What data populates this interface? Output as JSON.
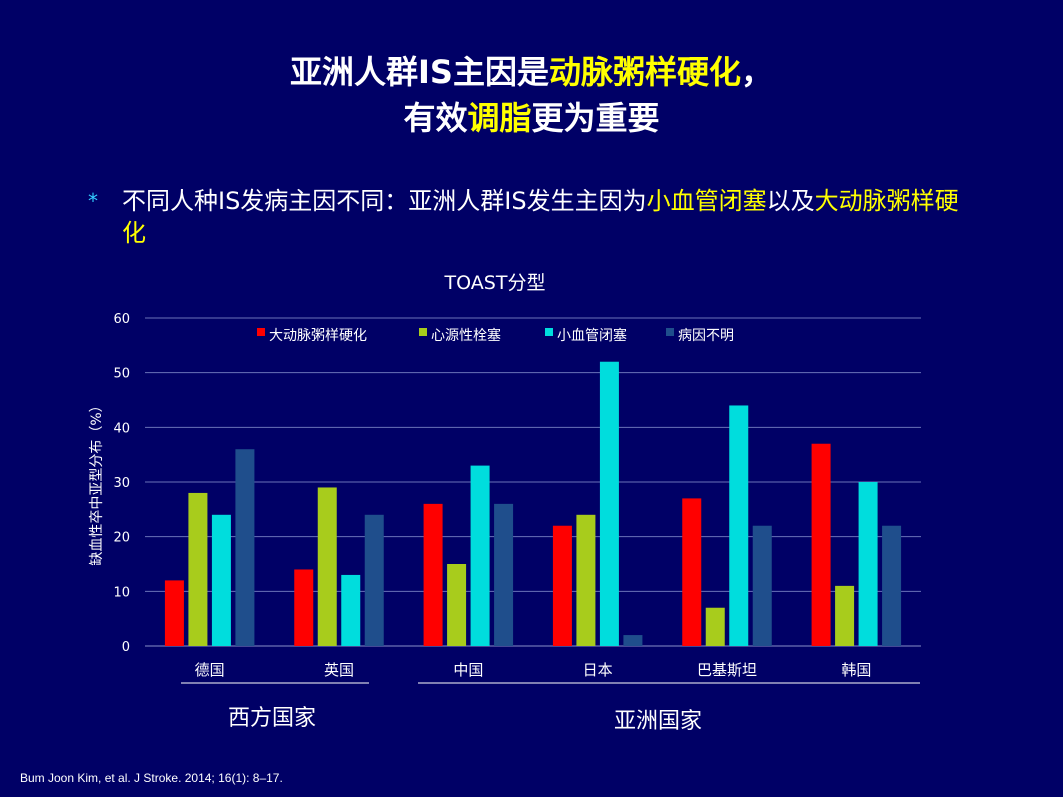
{
  "title": {
    "line1_pre": "亚洲人群IS主因是",
    "line1_hl": "动脉粥样硬化",
    "line1_post": "，",
    "line2_pre": "有效",
    "line2_hl": "调脂",
    "line2_post": "更为重要"
  },
  "bullet": {
    "marker": "*",
    "pre": "不同人种IS发病主因不同：亚洲人群IS发生主因为",
    "hl1": "小血管闭塞",
    "mid": "以及",
    "hl2": "大动脉粥样硬化"
  },
  "groups": {
    "western": "西方国家",
    "asian": "亚洲国家"
  },
  "citation": "Bum Joon Kim, et al. J Stroke.  2014; 16(1): 8–17.",
  "chart_data": {
    "type": "bar",
    "title": "TOAST分型",
    "xlabel": "",
    "ylabel": "缺血性卒中亚型分布（%）",
    "ylim": [
      0,
      60
    ],
    "yticks": [
      0,
      10,
      20,
      30,
      40,
      50,
      60
    ],
    "grid": true,
    "legend_position": "top",
    "categories": [
      "德国",
      "英国",
      "中国",
      "日本",
      "巴基斯坦",
      "韩国"
    ],
    "series": [
      {
        "name": "大动脉粥样硬化",
        "color": "#ff0000",
        "values": [
          12,
          14,
          26,
          22,
          27,
          37
        ]
      },
      {
        "name": "心源性栓塞",
        "color": "#a8cc1c",
        "values": [
          28,
          29,
          15,
          24,
          7,
          11
        ]
      },
      {
        "name": "小血管闭塞",
        "color": "#00dddd",
        "values": [
          24,
          13,
          33,
          52,
          44,
          30
        ]
      },
      {
        "name": "病因不明",
        "color": "#1f4e8c",
        "values": [
          36,
          24,
          26,
          2,
          22,
          22
        ]
      }
    ]
  }
}
